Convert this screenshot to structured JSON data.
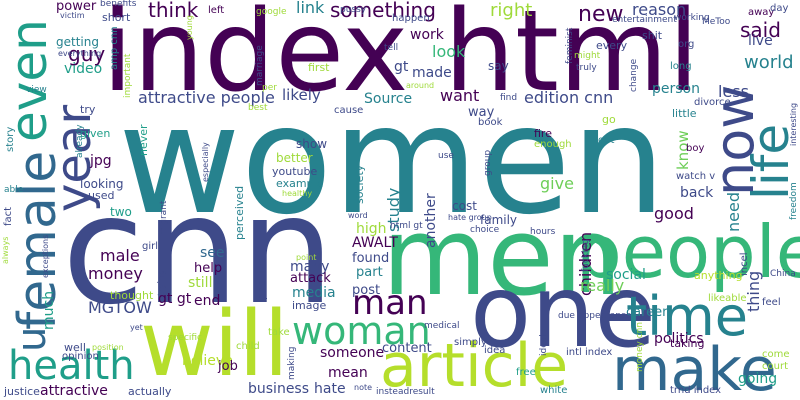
{
  "palette": {
    "purple": "#440154",
    "indigo": "#3e4a89",
    "blue": "#31688e",
    "teal": "#26828e",
    "cyan": "#1f9e89",
    "green": "#35b779",
    "lime": "#6ece58",
    "lightgreen": "#9fda3a",
    "yellow": "#b5de2b"
  },
  "words": [
    {
      "text": "index html",
      "color": "purple"
    },
    {
      "text": "women",
      "color": "teal"
    },
    {
      "text": "cnn",
      "color": "indigo"
    },
    {
      "text": "men",
      "color": "green"
    },
    {
      "text": "one",
      "color": "indigo"
    },
    {
      "text": "people",
      "color": "green"
    },
    {
      "text": "will",
      "color": "yellow"
    },
    {
      "text": "article",
      "color": "yellow"
    },
    {
      "text": "make",
      "color": "blue"
    },
    {
      "text": "time",
      "color": "teal"
    },
    {
      "text": "health",
      "color": "cyan"
    },
    {
      "text": "woman",
      "color": "green"
    },
    {
      "text": "female",
      "color": "blue"
    },
    {
      "text": "even",
      "color": "cyan"
    },
    {
      "text": "year",
      "color": "indigo"
    },
    {
      "text": "life",
      "color": "teal"
    },
    {
      "text": "now",
      "color": "indigo"
    },
    {
      "text": "man",
      "color": "purple"
    },
    {
      "text": "u",
      "color": "blue"
    },
    {
      "text": "something",
      "color": "purple"
    },
    {
      "text": "right",
      "color": "lightgreen"
    },
    {
      "text": "new",
      "color": "purple"
    },
    {
      "text": "reason",
      "color": "indigo"
    },
    {
      "text": "said",
      "color": "purple"
    },
    {
      "text": "world",
      "color": "teal"
    },
    {
      "text": "live",
      "color": "indigo"
    },
    {
      "text": "think",
      "color": "purple"
    },
    {
      "text": "link",
      "color": "teal"
    },
    {
      "text": "guy",
      "color": "purple"
    },
    {
      "text": "power",
      "color": "purple"
    },
    {
      "text": "getting",
      "color": "teal"
    },
    {
      "text": "video",
      "color": "cyan"
    },
    {
      "text": "attractive people",
      "color": "indigo"
    },
    {
      "text": "likely",
      "color": "indigo"
    },
    {
      "text": "Source",
      "color": "teal"
    },
    {
      "text": "want",
      "color": "purple"
    },
    {
      "text": "edition cnn",
      "color": "indigo"
    },
    {
      "text": "person",
      "color": "teal"
    },
    {
      "text": "made",
      "color": "indigo"
    },
    {
      "text": "look",
      "color": "green"
    },
    {
      "text": "work",
      "color": "purple"
    },
    {
      "text": "gt",
      "color": "indigo"
    },
    {
      "text": "say",
      "color": "indigo"
    },
    {
      "text": "less",
      "color": "indigo"
    },
    {
      "text": "need",
      "color": "teal"
    },
    {
      "text": "know",
      "color": "lime"
    },
    {
      "text": "thing",
      "color": "indigo"
    },
    {
      "text": "good",
      "color": "purple"
    },
    {
      "text": "back",
      "color": "indigo"
    },
    {
      "text": "give",
      "color": "lime"
    },
    {
      "text": "study",
      "color": "teal"
    },
    {
      "text": "another",
      "color": "indigo"
    },
    {
      "text": "children",
      "color": "purple"
    },
    {
      "text": "male",
      "color": "purple"
    },
    {
      "text": "money",
      "color": "purple"
    },
    {
      "text": "much",
      "color": "cyan"
    },
    {
      "text": "MGTOW",
      "color": "indigo"
    },
    {
      "text": "gt gt",
      "color": "purple"
    },
    {
      "text": "end",
      "color": "purple"
    },
    {
      "text": "help",
      "color": "purple"
    },
    {
      "text": "still",
      "color": "lightgreen"
    },
    {
      "text": "see",
      "color": "blue"
    },
    {
      "text": "really",
      "color": "lime"
    },
    {
      "text": "social",
      "color": "cyan"
    },
    {
      "text": "politics",
      "color": "purple"
    },
    {
      "text": "career",
      "color": "teal"
    },
    {
      "text": "going",
      "color": "cyan"
    },
    {
      "text": "mean",
      "color": "purple"
    },
    {
      "text": "someone",
      "color": "purple"
    },
    {
      "text": "attractive",
      "color": "purple"
    },
    {
      "text": "believe",
      "color": "yellow"
    },
    {
      "text": "business",
      "color": "indigo"
    },
    {
      "text": "hate",
      "color": "indigo"
    },
    {
      "text": "job",
      "color": "purple"
    },
    {
      "text": "content",
      "color": "indigo"
    },
    {
      "text": "post",
      "color": "indigo"
    },
    {
      "text": "found",
      "color": "indigo"
    },
    {
      "text": "part",
      "color": "teal"
    },
    {
      "text": "high",
      "color": "lightgreen"
    },
    {
      "text": "AWALT",
      "color": "purple"
    },
    {
      "text": "media",
      "color": "teal"
    },
    {
      "text": "many",
      "color": "indigo"
    },
    {
      "text": "attack",
      "color": "purple"
    },
    {
      "text": "image",
      "color": "indigo"
    },
    {
      "text": "show",
      "color": "indigo"
    },
    {
      "text": "better",
      "color": "lightgreen"
    },
    {
      "text": "youtube",
      "color": "indigo"
    },
    {
      "text": "example",
      "color": "teal"
    },
    {
      "text": "cost",
      "color": "indigo"
    },
    {
      "text": "family",
      "color": "indigo"
    },
    {
      "text": "jpg",
      "color": "purple"
    },
    {
      "text": "looking",
      "color": "indigo"
    },
    {
      "text": "used",
      "color": "indigo"
    },
    {
      "text": "two",
      "color": "cyan"
    },
    {
      "text": "given",
      "color": "cyan"
    },
    {
      "text": "try",
      "color": "indigo"
    },
    {
      "text": "way",
      "color": "indigo"
    },
    {
      "text": "short",
      "color": "indigo"
    },
    {
      "text": "left",
      "color": "purple"
    },
    {
      "text": "first",
      "color": "lightgreen"
    },
    {
      "text": "happen",
      "color": "indigo"
    },
    {
      "text": "every",
      "color": "indigo"
    },
    {
      "text": "org",
      "color": "indigo"
    },
    {
      "text": "long",
      "color": "teal"
    },
    {
      "text": "away",
      "color": "purple"
    },
    {
      "text": "shit",
      "color": "indigo"
    },
    {
      "text": "day",
      "color": "indigo"
    },
    {
      "text": "working",
      "color": "indigo"
    },
    {
      "text": "entertainment",
      "color": "indigo"
    },
    {
      "text": "little",
      "color": "teal"
    },
    {
      "text": "go",
      "color": "lightgreen"
    },
    {
      "text": "fire",
      "color": "purple"
    },
    {
      "text": "enough",
      "color": "lightgreen"
    },
    {
      "text": "got",
      "color": "teal"
    },
    {
      "text": "boy",
      "color": "purple"
    },
    {
      "text": "watch v",
      "color": "indigo"
    },
    {
      "text": "incel",
      "color": "indigo"
    },
    {
      "text": "divorce",
      "color": "indigo"
    },
    {
      "text": "book",
      "color": "indigo"
    },
    {
      "text": "find",
      "color": "indigo"
    },
    {
      "text": "cause",
      "color": "indigo"
    },
    {
      "text": "never",
      "color": "cyan"
    },
    {
      "text": "positive",
      "color": "indigo"
    },
    {
      "text": "perceived",
      "color": "teal"
    },
    {
      "text": "society",
      "color": "teal"
    },
    {
      "text": "girl",
      "color": "indigo"
    },
    {
      "text": "taking",
      "color": "purple"
    },
    {
      "text": "anything",
      "color": "yellow"
    },
    {
      "text": "likeable",
      "color": "lightgreen"
    },
    {
      "text": "feel",
      "color": "indigo"
    },
    {
      "text": "China",
      "color": "indigo"
    },
    {
      "text": "come",
      "color": "lightgreen"
    },
    {
      "text": "court",
      "color": "lightgreen"
    },
    {
      "text": "simply",
      "color": "indigo"
    },
    {
      "text": "idea",
      "color": "indigo"
    },
    {
      "text": "free",
      "color": "cyan"
    },
    {
      "text": "white",
      "color": "teal"
    },
    {
      "text": "intl index",
      "color": "indigo"
    },
    {
      "text": "trnd index",
      "color": "indigo"
    },
    {
      "text": "well",
      "color": "indigo"
    },
    {
      "text": "child",
      "color": "lightgreen"
    },
    {
      "text": "take",
      "color": "lightgreen"
    },
    {
      "text": "specific",
      "color": "lightgreen"
    },
    {
      "text": "opinion",
      "color": "indigo"
    },
    {
      "text": "justice",
      "color": "indigo"
    },
    {
      "text": "actually",
      "color": "indigo"
    },
    {
      "text": "note",
      "color": "indigo"
    },
    {
      "text": "insteadresult",
      "color": "indigo"
    },
    {
      "text": "yet",
      "color": "indigo"
    },
    {
      "text": "medical",
      "color": "indigo"
    },
    {
      "text": "due",
      "color": "indigo"
    },
    {
      "text": "appearance",
      "color": "indigo"
    },
    {
      "text": "choice",
      "color": "indigo"
    },
    {
      "text": "hours",
      "color": "indigo"
    },
    {
      "text": "html gt",
      "color": "indigo"
    },
    {
      "text": "hate group",
      "color": "indigo"
    },
    {
      "text": "use",
      "color": "indigo"
    },
    {
      "text": "group",
      "color": "indigo"
    },
    {
      "text": "word",
      "color": "indigo"
    },
    {
      "text": "healthy",
      "color": "lightgreen"
    },
    {
      "text": "point",
      "color": "lightgreen"
    },
    {
      "text": "especially",
      "color": "indigo"
    },
    {
      "text": "story",
      "color": "teal"
    },
    {
      "text": "already",
      "color": "teal"
    },
    {
      "text": "able",
      "color": "teal"
    },
    {
      "text": "fact",
      "color": "indigo"
    },
    {
      "text": "always",
      "color": "lightgreen"
    },
    {
      "text": "exceptions",
      "color": "indigo"
    },
    {
      "text": "view",
      "color": "teal"
    },
    {
      "text": "amp cnn",
      "color": "teal"
    },
    {
      "text": "important",
      "color": "lightgreen"
    },
    {
      "text": "benefits",
      "color": "indigo"
    },
    {
      "text": "victim",
      "color": "indigo"
    },
    {
      "text": "everything",
      "color": "indigo"
    },
    {
      "text": "young",
      "color": "lightgreen"
    },
    {
      "text": "marriage",
      "color": "indigo"
    },
    {
      "text": "google",
      "color": "lightgreen"
    },
    {
      "text": "per",
      "color": "lightgreen"
    },
    {
      "text": "best",
      "color": "lightgreen"
    },
    {
      "text": "pussy",
      "color": "indigo"
    },
    {
      "text": "tell",
      "color": "indigo"
    },
    {
      "text": "around",
      "color": "lightgreen"
    },
    {
      "text": "feminist",
      "color": "indigo"
    },
    {
      "text": "might",
      "color": "lightgreen"
    },
    {
      "text": "truly",
      "color": "indigo"
    },
    {
      "text": "change",
      "color": "indigo"
    },
    {
      "text": "MeToo",
      "color": "indigo"
    },
    {
      "text": "interesting",
      "color": "indigo"
    },
    {
      "text": "freedom",
      "color": "teal"
    },
    {
      "text": "fucking",
      "color": "indigo"
    },
    {
      "text": "ideal",
      "color": "indigo"
    },
    {
      "text": "money cnn",
      "color": "lightgreen"
    },
    {
      "text": "migrant",
      "color": "indigo"
    },
    {
      "text": "trying",
      "color": "indigo"
    },
    {
      "text": "making",
      "color": "indigo"
    },
    {
      "text": "position",
      "color": "lightgreen"
    },
    {
      "text": "thought",
      "color": "lightgreen"
    }
  ]
}
